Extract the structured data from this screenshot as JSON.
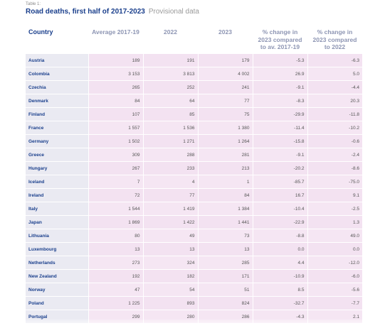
{
  "caption": "Table 1:",
  "title": "Road deaths, first half of 2017-2023",
  "subtitle": "Provisional data",
  "headers": {
    "country": "Country",
    "avg": "Average 2017-19",
    "y2022": "2022",
    "y2023": "2023",
    "pct_avg": "% change in 2023 compared to av. 2017-19",
    "pct_2022": "% change in 2023 compared to 2022"
  },
  "rows": [
    {
      "country": "Austria",
      "avg": "189",
      "y2022": "191",
      "y2023": "179",
      "pct_avg": "-5.3",
      "pct_2022": "-6.3"
    },
    {
      "country": "Colombia",
      "avg": "3 153",
      "y2022": "3 813",
      "y2023": "4 002",
      "pct_avg": "26.9",
      "pct_2022": "5.0"
    },
    {
      "country": "Czechia",
      "avg": "265",
      "y2022": "252",
      "y2023": "241",
      "pct_avg": "-9.1",
      "pct_2022": "-4.4"
    },
    {
      "country": "Denmark",
      "avg": "84",
      "y2022": "64",
      "y2023": "77",
      "pct_avg": "-8.3",
      "pct_2022": "20.3"
    },
    {
      "country": "Finland",
      "avg": "107",
      "y2022": "85",
      "y2023": "75",
      "pct_avg": "-29.9",
      "pct_2022": "-11.8"
    },
    {
      "country": "France",
      "avg": "1 557",
      "y2022": "1 536",
      "y2023": "1 380",
      "pct_avg": "-11.4",
      "pct_2022": "-10.2"
    },
    {
      "country": "Germany",
      "avg": "1 502",
      "y2022": "1 271",
      "y2023": "1 264",
      "pct_avg": "-15.8",
      "pct_2022": "-0.6"
    },
    {
      "country": "Greece",
      "avg": "309",
      "y2022": "288",
      "y2023": "281",
      "pct_avg": "-9.1",
      "pct_2022": "-2.4"
    },
    {
      "country": "Hungary",
      "avg": "267",
      "y2022": "233",
      "y2023": "213",
      "pct_avg": "-20.2",
      "pct_2022": "-8.6"
    },
    {
      "country": "Iceland",
      "avg": "7",
      "y2022": "4",
      "y2023": "1",
      "pct_avg": "-85.7",
      "pct_2022": "-75.0"
    },
    {
      "country": "Ireland",
      "avg": "72",
      "y2022": "77",
      "y2023": "84",
      "pct_avg": "16.7",
      "pct_2022": "9.1"
    },
    {
      "country": "Italy",
      "avg": "1 544",
      "y2022": "1 419",
      "y2023": "1 384",
      "pct_avg": "-10.4",
      "pct_2022": "-2.5"
    },
    {
      "country": "Japan",
      "avg": "1 869",
      "y2022": "1 422",
      "y2023": "1 441",
      "pct_avg": "-22.9",
      "pct_2022": "1.3"
    },
    {
      "country": "Lithuania",
      "avg": "80",
      "y2022": "49",
      "y2023": "73",
      "pct_avg": "-8.8",
      "pct_2022": "49.0"
    },
    {
      "country": "Luxembourg",
      "avg": "13",
      "y2022": "13",
      "y2023": "13",
      "pct_avg": "0.0",
      "pct_2022": "0.0"
    },
    {
      "country": "Netherlands",
      "avg": "273",
      "y2022": "324",
      "y2023": "285",
      "pct_avg": "4.4",
      "pct_2022": "-12.0"
    },
    {
      "country": "New Zealand",
      "avg": "192",
      "y2022": "182",
      "y2023": "171",
      "pct_avg": "-10.9",
      "pct_2022": "-6.0"
    },
    {
      "country": "Norway",
      "avg": "47",
      "y2022": "54",
      "y2023": "51",
      "pct_avg": "8.5",
      "pct_2022": "-5.6"
    },
    {
      "country": "Poland",
      "avg": "1 225",
      "y2022": "893",
      "y2023": "824",
      "pct_avg": "-32.7",
      "pct_2022": "-7.7"
    },
    {
      "country": "Portugal",
      "avg": "299",
      "y2022": "280",
      "y2023": "286",
      "pct_avg": "-4.3",
      "pct_2022": "2.1"
    }
  ]
}
